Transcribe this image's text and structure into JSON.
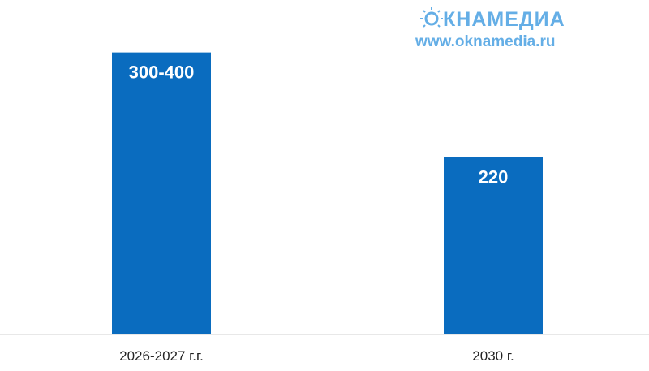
{
  "watermark": {
    "brand": "ОКНАМЕДИА",
    "brand_rest": "КНАМЕДИА",
    "url": "www.oknamedia.ru",
    "color": "#64aee6",
    "icon": "sun-icon"
  },
  "chart_data": {
    "type": "bar",
    "categories": [
      "2026-2027 г.г.",
      "2030 г."
    ],
    "values": [
      350,
      220
    ],
    "value_labels": [
      "300-400",
      "220"
    ],
    "ylim": [
      0,
      400
    ],
    "bar_color": "#0a6cbf",
    "grid": false,
    "legend": "none"
  }
}
